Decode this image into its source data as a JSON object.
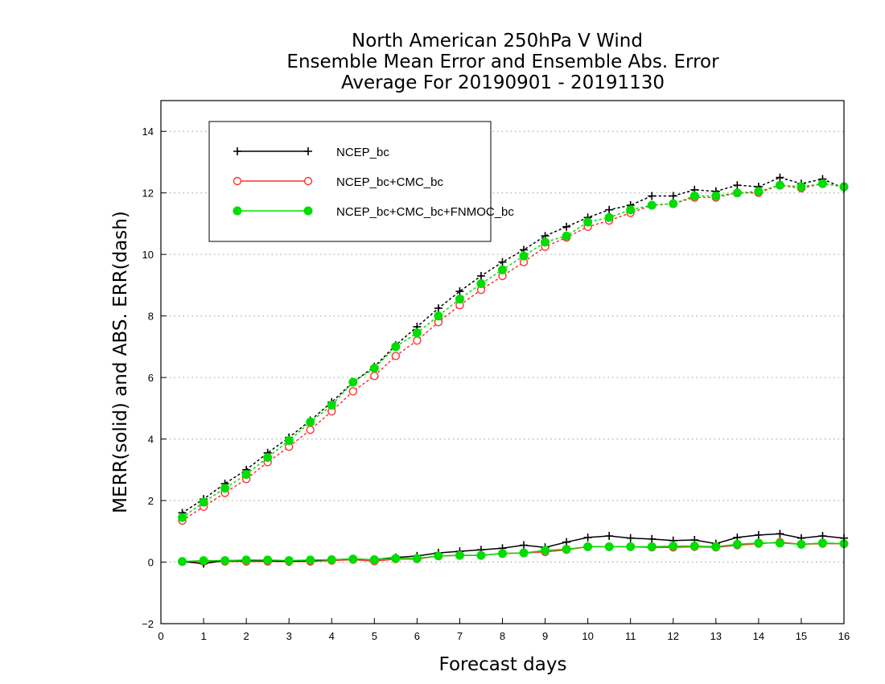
{
  "colors": {
    "NCEP_bc": "#000000",
    "NCEP_bc+CMC_bc": "#ff3030",
    "NCEP_bc+CMC_bc+FNMOC_bc": "#00dd00"
  },
  "chart_data": {
    "type": "line",
    "title": [
      "North American 250hPa V Wind",
      "Ensemble Mean Error and Ensemble Abs. Error",
      "Average For 20190901 - 20191130"
    ],
    "xlabel": "Forecast days",
    "ylabel": "MERR(solid) and ABS. ERR(dash)",
    "xlim": [
      0,
      16
    ],
    "ylim": [
      -2,
      15
    ],
    "xticks": [
      "0",
      "1",
      "2",
      "3",
      "4",
      "5",
      "6",
      "7",
      "8",
      "9",
      "10",
      "11",
      "12",
      "13",
      "14",
      "15",
      "16"
    ],
    "yticks": [
      "−2",
      "0",
      "2",
      "4",
      "6",
      "8",
      "10",
      "12",
      "14"
    ],
    "grid": "horizontal dotted",
    "legend_position": "top-left",
    "x": [
      0.5,
      1,
      1.5,
      2,
      2.5,
      3,
      3.5,
      4,
      4.5,
      5,
      5.5,
      6,
      6.5,
      7,
      7.5,
      8,
      8.5,
      9,
      9.5,
      10,
      10.5,
      11,
      11.5,
      12,
      12.5,
      13,
      13.5,
      14,
      14.5,
      15,
      15.5,
      16
    ],
    "series": [
      {
        "name": "NCEP_bc",
        "marker": "plus",
        "merr": [
          0.02,
          -0.05,
          0.05,
          0.05,
          0.05,
          0.02,
          0.05,
          0.08,
          0.1,
          0.08,
          0.15,
          0.2,
          0.3,
          0.35,
          0.4,
          0.45,
          0.55,
          0.48,
          0.65,
          0.8,
          0.85,
          0.78,
          0.75,
          0.7,
          0.72,
          0.6,
          0.8,
          0.88,
          0.92,
          0.78,
          0.85,
          0.78
        ],
        "abs_err": [
          1.6,
          2.05,
          2.55,
          3.0,
          3.55,
          4.05,
          4.6,
          5.2,
          5.85,
          6.35,
          7.05,
          7.65,
          8.25,
          8.8,
          9.3,
          9.75,
          10.15,
          10.6,
          10.9,
          11.2,
          11.45,
          11.6,
          11.9,
          11.9,
          12.1,
          12.05,
          12.25,
          12.2,
          12.5,
          12.3,
          12.45,
          12.15
        ]
      },
      {
        "name": "NCEP_bc+CMC_bc",
        "marker": "open-circle",
        "merr": [
          0.02,
          0.02,
          0.02,
          0.02,
          0.02,
          0.02,
          0.02,
          0.05,
          0.08,
          0.03,
          0.1,
          0.1,
          0.2,
          0.22,
          0.22,
          0.28,
          0.3,
          0.33,
          0.4,
          0.5,
          0.5,
          0.5,
          0.48,
          0.48,
          0.5,
          0.48,
          0.55,
          0.6,
          0.65,
          0.58,
          0.6,
          0.6
        ],
        "abs_err": [
          1.35,
          1.8,
          2.25,
          2.7,
          3.25,
          3.75,
          4.3,
          4.9,
          5.55,
          6.05,
          6.7,
          7.2,
          7.8,
          8.35,
          8.85,
          9.3,
          9.75,
          10.25,
          10.55,
          10.9,
          11.1,
          11.35,
          11.6,
          11.65,
          11.85,
          11.85,
          12.0,
          12.0,
          12.25,
          12.15,
          12.3,
          12.2
        ]
      },
      {
        "name": "NCEP_bc+CMC_bc+FNMOC_bc",
        "marker": "filled-circle",
        "merr": [
          0.02,
          0.05,
          0.05,
          0.07,
          0.07,
          0.05,
          0.07,
          0.08,
          0.1,
          0.08,
          0.12,
          0.12,
          0.2,
          0.22,
          0.22,
          0.28,
          0.3,
          0.38,
          0.42,
          0.5,
          0.5,
          0.5,
          0.5,
          0.52,
          0.52,
          0.5,
          0.58,
          0.62,
          0.62,
          0.58,
          0.62,
          0.6
        ],
        "abs_err": [
          1.45,
          1.95,
          2.4,
          2.85,
          3.4,
          3.95,
          4.55,
          5.1,
          5.85,
          6.3,
          7.0,
          7.45,
          8.0,
          8.55,
          9.05,
          9.5,
          9.95,
          10.4,
          10.6,
          11.05,
          11.2,
          11.45,
          11.6,
          11.65,
          11.9,
          11.9,
          12.0,
          12.05,
          12.25,
          12.2,
          12.3,
          12.2
        ]
      }
    ]
  }
}
